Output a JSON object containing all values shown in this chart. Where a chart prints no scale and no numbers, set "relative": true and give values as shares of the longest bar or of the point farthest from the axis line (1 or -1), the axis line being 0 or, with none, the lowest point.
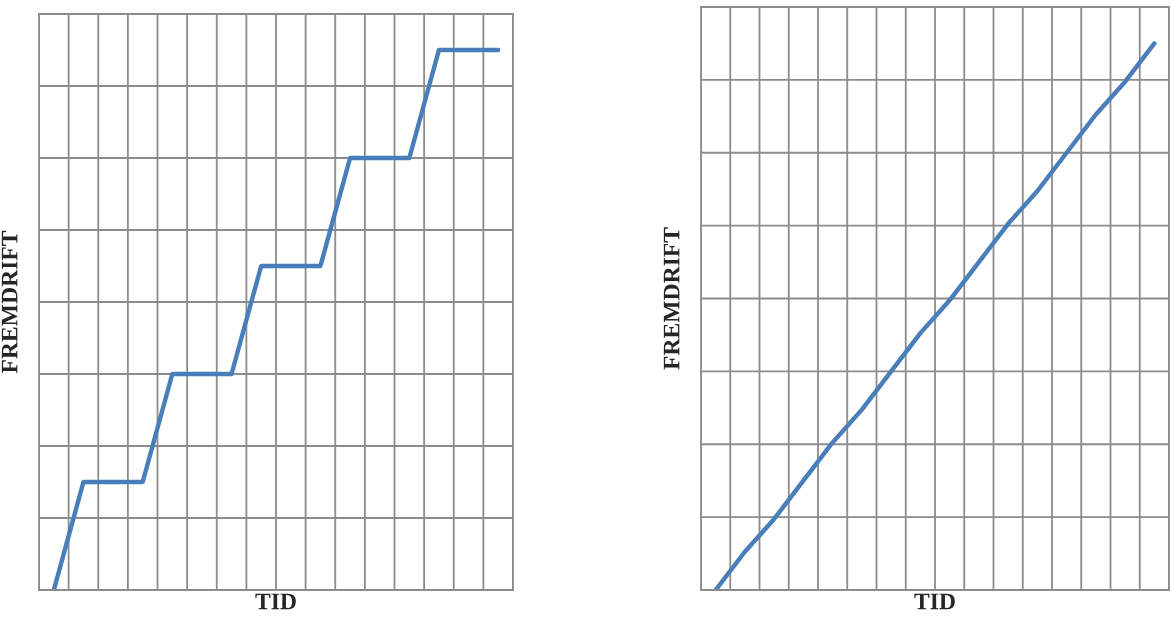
{
  "chart_data": [
    {
      "type": "line",
      "xlabel": "TID",
      "ylabel": "FREMDRIFT",
      "relative": true,
      "grid": true,
      "tick_labels": false,
      "marker": "none",
      "line_style": "solid",
      "categories": [
        null,
        null,
        null,
        null,
        null,
        null,
        null,
        null,
        null,
        null,
        null,
        null,
        null,
        null,
        null,
        null
      ],
      "series": [
        {
          "color": "#4a7ebb",
          "values": [
            0,
            0.2,
            0.2,
            0.2,
            0.4,
            0.4,
            0.4,
            0.6,
            0.6,
            0.6,
            0.8,
            0.8,
            0.8,
            1,
            1,
            1
          ]
        }
      ]
    },
    {
      "type": "line",
      "xlabel": "TID",
      "ylabel": "FREMDRIFT",
      "relative": true,
      "grid": true,
      "tick_labels": false,
      "marker": "none",
      "line_style": "solid",
      "categories": [
        null,
        null,
        null,
        null,
        null,
        null,
        null,
        null,
        null,
        null,
        null,
        null,
        null,
        null,
        null,
        null
      ],
      "series": [
        {
          "color": "#4a7ebb",
          "values": [
            0,
            0.07,
            0.13,
            0.2,
            0.27,
            0.33,
            0.4,
            0.47,
            0.53,
            0.6,
            0.67,
            0.73,
            0.8,
            0.87,
            0.93,
            1
          ]
        }
      ]
    }
  ]
}
